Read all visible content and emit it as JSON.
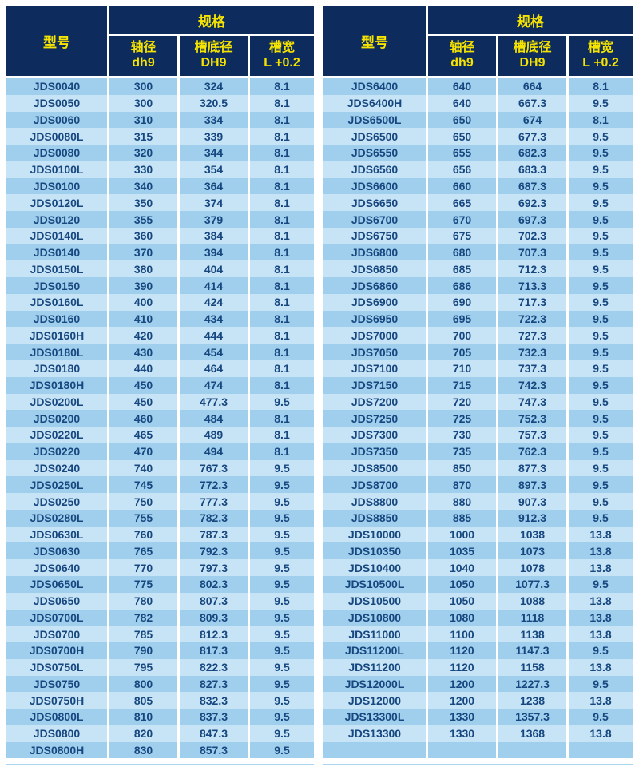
{
  "colors": {
    "header_bg": "#0d2b5c",
    "header_text": "#f6e400",
    "row_odd": "#9fcfed",
    "row_even": "#c7e4f7",
    "body_text": "#17477f",
    "divider": "#ffffff",
    "page_bg": "#ffffff",
    "bottom_line": "#a9d4ee"
  },
  "header": {
    "model_label": "型号",
    "spec_label": "规格",
    "columns": [
      {
        "line1": "轴径",
        "line2": "dh9"
      },
      {
        "line1": "槽底径",
        "line2": "DH9"
      },
      {
        "line1": "槽宽",
        "line2": "L +0.2"
      }
    ]
  },
  "tables": [
    {
      "id": "left",
      "rows": [
        [
          "JDS0040",
          "300",
          "324",
          "8.1"
        ],
        [
          "JDS0050",
          "300",
          "320.5",
          "8.1"
        ],
        [
          "JDS0060",
          "310",
          "334",
          "8.1"
        ],
        [
          "JDS0080L",
          "315",
          "339",
          "8.1"
        ],
        [
          "JDS0080",
          "320",
          "344",
          "8.1"
        ],
        [
          "JDS0100L",
          "330",
          "354",
          "8.1"
        ],
        [
          "JDS0100",
          "340",
          "364",
          "8.1"
        ],
        [
          "JDS0120L",
          "350",
          "374",
          "8.1"
        ],
        [
          "JDS0120",
          "355",
          "379",
          "8.1"
        ],
        [
          "JDS0140L",
          "360",
          "384",
          "8.1"
        ],
        [
          "JDS0140",
          "370",
          "394",
          "8.1"
        ],
        [
          "JDS0150L",
          "380",
          "404",
          "8.1"
        ],
        [
          "JDS0150",
          "390",
          "414",
          "8.1"
        ],
        [
          "JDS0160L",
          "400",
          "424",
          "8.1"
        ],
        [
          "JDS0160",
          "410",
          "434",
          "8.1"
        ],
        [
          "JDS0160H",
          "420",
          "444",
          "8.1"
        ],
        [
          "JDS0180L",
          "430",
          "454",
          "8.1"
        ],
        [
          "JDS0180",
          "440",
          "464",
          "8.1"
        ],
        [
          "JDS0180H",
          "450",
          "474",
          "8.1"
        ],
        [
          "JDS0200L",
          "450",
          "477.3",
          "9.5"
        ],
        [
          "JDS0200",
          "460",
          "484",
          "8.1"
        ],
        [
          "JDS0220L",
          "465",
          "489",
          "8.1"
        ],
        [
          "JDS0220",
          "470",
          "494",
          "8.1"
        ],
        [
          "JDS0240",
          "740",
          "767.3",
          "9.5"
        ],
        [
          "JDS0250L",
          "745",
          "772.3",
          "9.5"
        ],
        [
          "JDS0250",
          "750",
          "777.3",
          "9.5"
        ],
        [
          "JDS0280L",
          "755",
          "782.3",
          "9.5"
        ],
        [
          "JDS0630L",
          "760",
          "787.3",
          "9.5"
        ],
        [
          "JDS0630",
          "765",
          "792.3",
          "9.5"
        ],
        [
          "JDS0640",
          "770",
          "797.3",
          "9.5"
        ],
        [
          "JDS0650L",
          "775",
          "802.3",
          "9.5"
        ],
        [
          "JDS0650",
          "780",
          "807.3",
          "9.5"
        ],
        [
          "JDS0700L",
          "782",
          "809.3",
          "9.5"
        ],
        [
          "JDS0700",
          "785",
          "812.3",
          "9.5"
        ],
        [
          "JDS0700H",
          "790",
          "817.3",
          "9.5"
        ],
        [
          "JDS0750L",
          "795",
          "822.3",
          "9.5"
        ],
        [
          "JDS0750",
          "800",
          "827.3",
          "9.5"
        ],
        [
          "JDS0750H",
          "805",
          "832.3",
          "9.5"
        ],
        [
          "JDS0800L",
          "810",
          "837.3",
          "9.5"
        ],
        [
          "JDS0800",
          "820",
          "847.3",
          "9.5"
        ],
        [
          "JDS0800H",
          "830",
          "857.3",
          "9.5"
        ]
      ]
    },
    {
      "id": "right",
      "rows": [
        [
          "JDS6400",
          "640",
          "664",
          "8.1"
        ],
        [
          "JDS6400H",
          "640",
          "667.3",
          "9.5"
        ],
        [
          "JDS6500L",
          "650",
          "674",
          "8.1"
        ],
        [
          "JDS6500",
          "650",
          "677.3",
          "9.5"
        ],
        [
          "JDS6550",
          "655",
          "682.3",
          "9.5"
        ],
        [
          "JDS6560",
          "656",
          "683.3",
          "9.5"
        ],
        [
          "JDS6600",
          "660",
          "687.3",
          "9.5"
        ],
        [
          "JDS6650",
          "665",
          "692.3",
          "9.5"
        ],
        [
          "JDS6700",
          "670",
          "697.3",
          "9.5"
        ],
        [
          "JDS6750",
          "675",
          "702.3",
          "9.5"
        ],
        [
          "JDS6800",
          "680",
          "707.3",
          "9.5"
        ],
        [
          "JDS6850",
          "685",
          "712.3",
          "9.5"
        ],
        [
          "JDS6860",
          "686",
          "713.3",
          "9.5"
        ],
        [
          "JDS6900",
          "690",
          "717.3",
          "9.5"
        ],
        [
          "JDS6950",
          "695",
          "722.3",
          "9.5"
        ],
        [
          "JDS7000",
          "700",
          "727.3",
          "9.5"
        ],
        [
          "JDS7050",
          "705",
          "732.3",
          "9.5"
        ],
        [
          "JDS7100",
          "710",
          "737.3",
          "9.5"
        ],
        [
          "JDS7150",
          "715",
          "742.3",
          "9.5"
        ],
        [
          "JDS7200",
          "720",
          "747.3",
          "9.5"
        ],
        [
          "JDS7250",
          "725",
          "752.3",
          "9.5"
        ],
        [
          "JDS7300",
          "730",
          "757.3",
          "9.5"
        ],
        [
          "JDS7350",
          "735",
          "762.3",
          "9.5"
        ],
        [
          "JDS8500",
          "850",
          "877.3",
          "9.5"
        ],
        [
          "JDS8700",
          "870",
          "897.3",
          "9.5"
        ],
        [
          "JDS8800",
          "880",
          "907.3",
          "9.5"
        ],
        [
          "JDS8850",
          "885",
          "912.3",
          "9.5"
        ],
        [
          "JDS10000",
          "1000",
          "1038",
          "13.8"
        ],
        [
          "JDS10350",
          "1035",
          "1073",
          "13.8"
        ],
        [
          "JDS10400",
          "1040",
          "1078",
          "13.8"
        ],
        [
          "JDS10500L",
          "1050",
          "1077.3",
          "9.5"
        ],
        [
          "JDS10500",
          "1050",
          "1088",
          "13.8"
        ],
        [
          "JDS10800",
          "1080",
          "1118",
          "13.8"
        ],
        [
          "JDS11000",
          "1100",
          "1138",
          "13.8"
        ],
        [
          "JDS11200L",
          "1120",
          "1147.3",
          "9.5"
        ],
        [
          "JDS11200",
          "1120",
          "1158",
          "13.8"
        ],
        [
          "JDS12000L",
          "1200",
          "1227.3",
          "9.5"
        ],
        [
          "JDS12000",
          "1200",
          "1238",
          "13.8"
        ],
        [
          "JDS13300L",
          "1330",
          "1357.3",
          "9.5"
        ],
        [
          "JDS13300",
          "1330",
          "1368",
          "13.8"
        ],
        [
          "",
          "",
          "",
          ""
        ]
      ]
    }
  ]
}
